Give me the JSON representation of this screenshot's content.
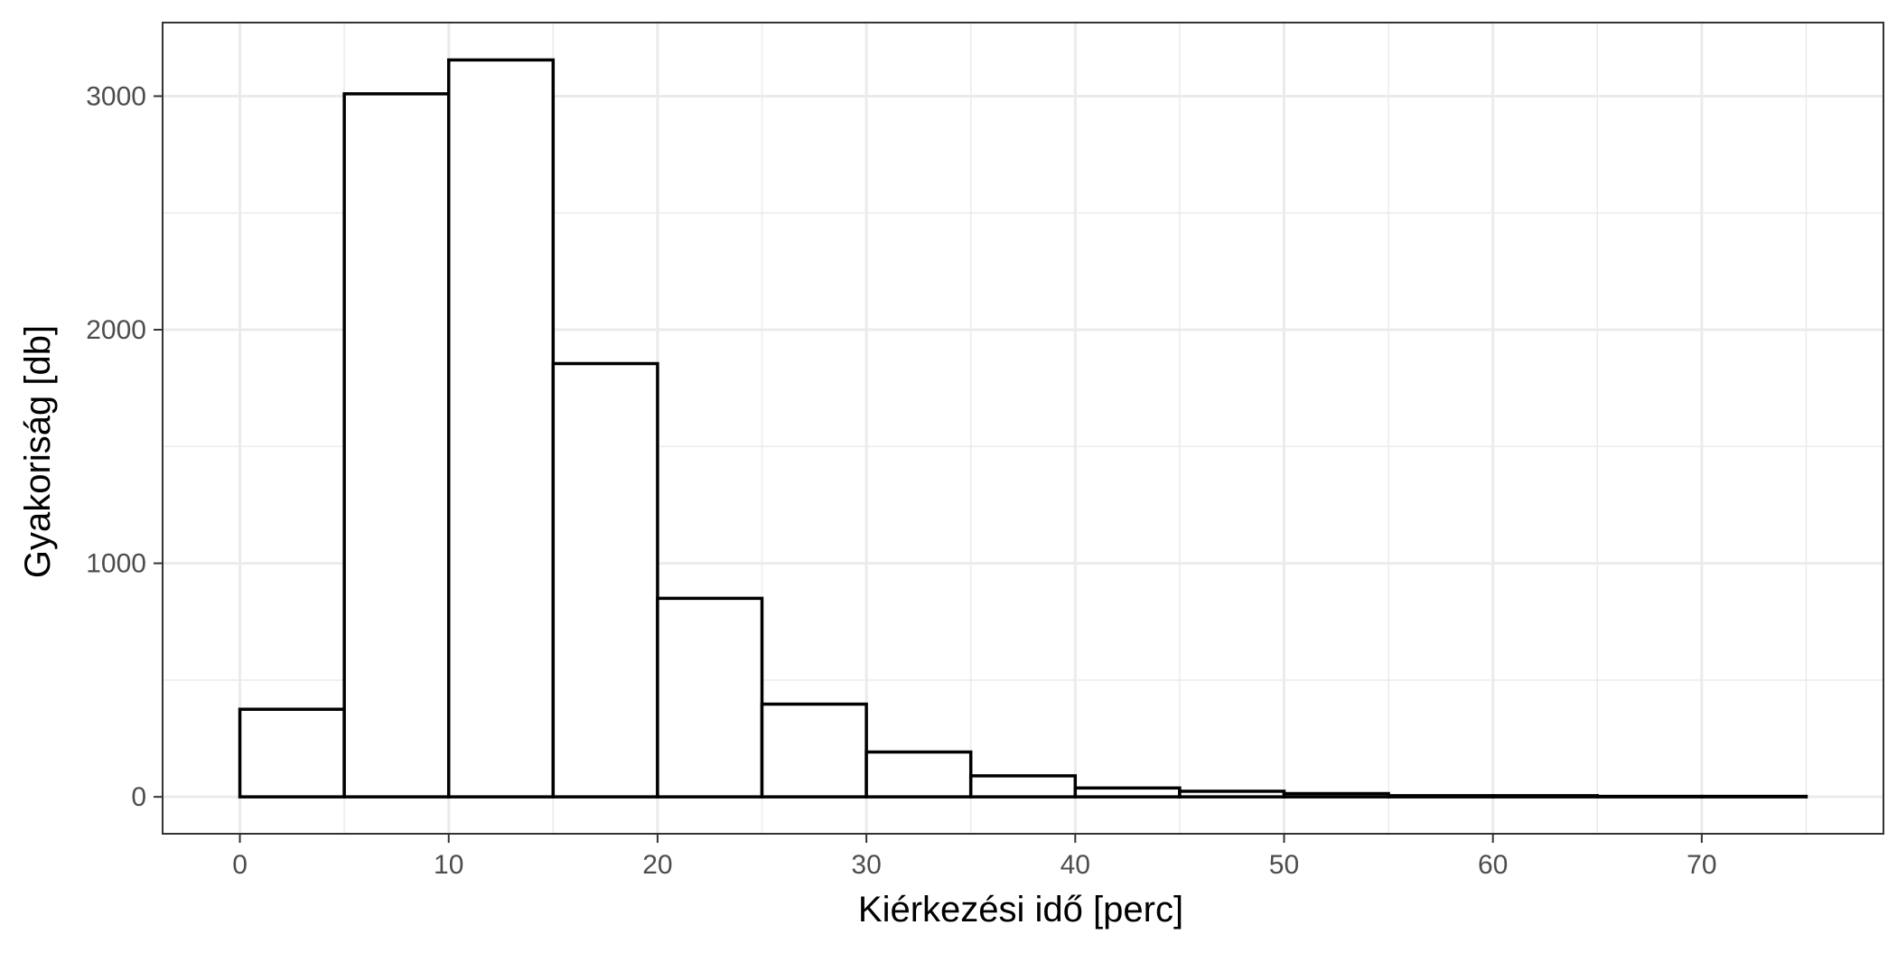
{
  "chart_data": {
    "type": "bar",
    "subtype": "histogram",
    "xlabel": "Kiérkezési idő [perc]",
    "ylabel": "Gyakoriság [db]",
    "x_ticks": [
      0,
      10,
      20,
      30,
      40,
      50,
      60,
      70
    ],
    "y_ticks": [
      0,
      1000,
      2000,
      3000
    ],
    "xlim": [
      -3.7,
      78.7
    ],
    "ylim": [
      -158,
      3315
    ],
    "grid": true,
    "bin_width": 5,
    "bins": [
      {
        "x0": 0,
        "x1": 5,
        "count": 375
      },
      {
        "x0": 5,
        "x1": 10,
        "count": 3010
      },
      {
        "x0": 10,
        "x1": 15,
        "count": 3155
      },
      {
        "x0": 15,
        "x1": 20,
        "count": 1855
      },
      {
        "x0": 20,
        "x1": 25,
        "count": 850
      },
      {
        "x0": 25,
        "x1": 30,
        "count": 397
      },
      {
        "x0": 30,
        "x1": 35,
        "count": 192
      },
      {
        "x0": 35,
        "x1": 40,
        "count": 90
      },
      {
        "x0": 40,
        "x1": 45,
        "count": 38
      },
      {
        "x0": 45,
        "x1": 50,
        "count": 24
      },
      {
        "x0": 50,
        "x1": 55,
        "count": 14
      },
      {
        "x0": 55,
        "x1": 60,
        "count": 5
      },
      {
        "x0": 60,
        "x1": 65,
        "count": 5
      },
      {
        "x0": 65,
        "x1": 70,
        "count": 2
      },
      {
        "x0": 70,
        "x1": 75,
        "count": 2
      }
    ],
    "bar_fill": "#ffffff",
    "bar_stroke": "#000000",
    "panel_border": "#333333",
    "grid_color": "#ebebeb"
  }
}
